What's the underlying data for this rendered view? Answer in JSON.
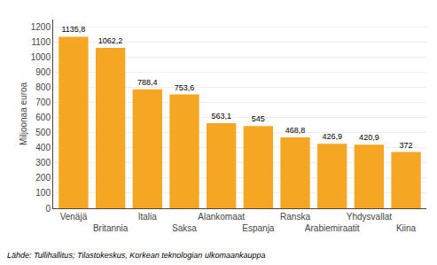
{
  "chart_data": {
    "type": "bar",
    "ylabel": "Miljoonaa euroa",
    "categories": [
      "Venäjä",
      "Britannia",
      "Italia",
      "Saksa",
      "Alankomaat",
      "Espanja",
      "Ranska",
      "Arabiemiraatit",
      "Yhdysvallat",
      "Kiina"
    ],
    "values": [
      1135.8,
      1062.2,
      788.4,
      753.6,
      563.1,
      545,
      468.8,
      426.9,
      420.9,
      372
    ],
    "value_labels": [
      "1135,8",
      "1062,2",
      "788,4",
      "753,6",
      "563,1",
      "545",
      "468,8",
      "426,9",
      "420,9",
      "372"
    ],
    "data_labels": true,
    "color": "#F5A623",
    "ylim": [
      0,
      1250
    ],
    "yticks": [
      0,
      100,
      200,
      300,
      400,
      500,
      600,
      700,
      800,
      900,
      1000,
      1100,
      1200
    ],
    "grid": true,
    "annotations": [
      "Lähde: Tullihallitus; Tilastokeskus, Korkean teknologian ulkomaankauppa"
    ]
  }
}
